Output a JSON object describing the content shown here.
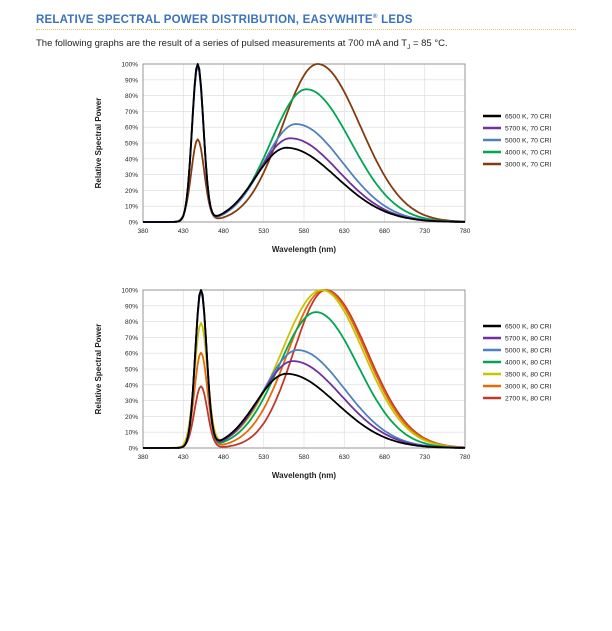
{
  "header": {
    "title": "RELATIVE SPECTRAL POWER DISTRIBUTION, EASYWHITE",
    "title_mark": "®",
    "title_suffix": " LEDS",
    "intro_pre": "The following graphs are the result of a series of pulsed measurements at 700 mA and T",
    "intro_sub": "J",
    "intro_post": " = 85 °C.",
    "accent_color": "#3b73b9"
  },
  "chart_data": [
    {
      "type": "line",
      "xlabel": "Wavelength (nm)",
      "ylabel": "Relative Spectral Power",
      "xlim": [
        380,
        780
      ],
      "ylim": [
        0,
        100
      ],
      "x_ticks": [
        380,
        430,
        480,
        530,
        580,
        630,
        680,
        730,
        780
      ],
      "y_ticks": [
        0,
        10,
        20,
        30,
        40,
        50,
        60,
        70,
        80,
        90,
        100
      ],
      "y_tick_suffix": "%",
      "grid": true,
      "legend_position": "right",
      "series": [
        {
          "name": "6500 K, 70 CRI",
          "color": "#000000",
          "blue_peak": 100,
          "phosphor_peak": 47,
          "phosphor_center": 558,
          "width_left": 38,
          "width_right": 62
        },
        {
          "name": "5700 K, 70 CRI",
          "color": "#7030a0",
          "blue_peak": 99,
          "phosphor_peak": 53,
          "phosphor_center": 563,
          "width_left": 39,
          "width_right": 60
        },
        {
          "name": "5000 K, 70 CRI",
          "color": "#4f81bd",
          "blue_peak": 98,
          "phosphor_peak": 62,
          "phosphor_center": 570,
          "width_left": 40,
          "width_right": 58
        },
        {
          "name": "4000 K, 70 CRI",
          "color": "#00a650",
          "blue_peak": 100,
          "phosphor_peak": 84,
          "phosphor_center": 583,
          "width_left": 44,
          "width_right": 55
        },
        {
          "name": "3000 K, 70 CRI",
          "color": "#843c0c",
          "blue_peak": 52,
          "phosphor_peak": 100,
          "phosphor_center": 597,
          "width_left": 44,
          "width_right": 53
        }
      ]
    },
    {
      "type": "line",
      "xlabel": "Wavelength (nm)",
      "ylabel": "Relative Spectral Power",
      "xlim": [
        380,
        780
      ],
      "ylim": [
        0,
        100
      ],
      "x_ticks": [
        380,
        430,
        480,
        530,
        580,
        630,
        680,
        730,
        780
      ],
      "y_ticks": [
        0,
        10,
        20,
        30,
        40,
        50,
        60,
        70,
        80,
        90,
        100
      ],
      "y_tick_suffix": "%",
      "grid": true,
      "legend_position": "right",
      "series": [
        {
          "name": "6500 K, 80 CRI",
          "color": "#000000",
          "blue_peak": 100,
          "phosphor_peak": 47,
          "phosphor_center": 558,
          "width_left": 38,
          "width_right": 62
        },
        {
          "name": "5700 K, 80 CRI",
          "color": "#7030a0",
          "blue_peak": 99,
          "phosphor_peak": 55,
          "phosphor_center": 566,
          "width_left": 39,
          "width_right": 60
        },
        {
          "name": "5000 K, 80 CRI",
          "color": "#4f81bd",
          "blue_peak": 98,
          "phosphor_peak": 62,
          "phosphor_center": 572,
          "width_left": 41,
          "width_right": 58
        },
        {
          "name": "4000 K, 80 CRI",
          "color": "#00a650",
          "blue_peak": 100,
          "phosphor_peak": 86,
          "phosphor_center": 595,
          "width_left": 46,
          "width_right": 52
        },
        {
          "name": "3500 K, 80 CRI",
          "color": "#c9c400",
          "blue_peak": 78,
          "phosphor_peak": 100,
          "phosphor_center": 602,
          "width_left": 50,
          "width_right": 52
        },
        {
          "name": "3000 K, 80 CRI",
          "color": "#e36c09",
          "blue_peak": 60,
          "phosphor_peak": 100,
          "phosphor_center": 605,
          "width_left": 45,
          "width_right": 52
        },
        {
          "name": "2700 K, 80 CRI",
          "color": "#c0392b",
          "blue_peak": 39,
          "phosphor_peak": 100,
          "phosphor_center": 607,
          "width_left": 40,
          "width_right": 52
        }
      ]
    }
  ]
}
